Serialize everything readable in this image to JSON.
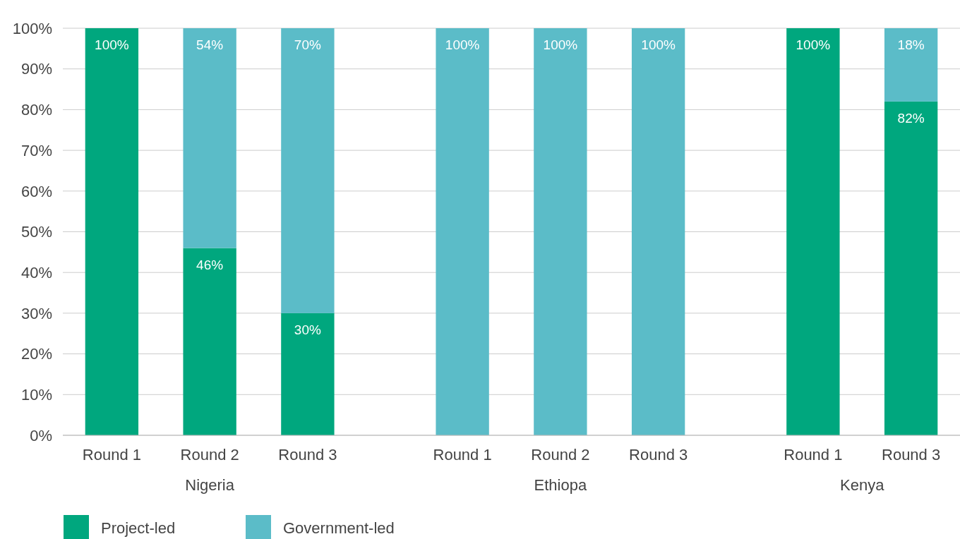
{
  "chart_data": {
    "type": "bar",
    "stacked": true,
    "categories": [
      "Round 1",
      "Round 2",
      "Round 3",
      null,
      "Round 1",
      "Round 2",
      "Round 3",
      null,
      "Round 1",
      "Round 3"
    ],
    "series": [
      {
        "name": "Project-led",
        "color": "#00a77e",
        "values": [
          100,
          46,
          30,
          null,
          0,
          0,
          0,
          null,
          100,
          82
        ],
        "value_labels": [
          "100%",
          "46%",
          "30%",
          null,
          null,
          null,
          null,
          null,
          "100%",
          "82%"
        ]
      },
      {
        "name": "Government-led",
        "color": "#5bbcc8",
        "values": [
          0,
          54,
          70,
          null,
          100,
          100,
          100,
          null,
          0,
          18
        ],
        "value_labels": [
          null,
          "54%",
          "70%",
          null,
          "100%",
          "100%",
          "100%",
          null,
          null,
          "18%"
        ]
      }
    ],
    "annotations": [
      "Nigeria",
      "Ethiopa",
      "Kenya"
    ],
    "ylim": [
      0,
      100
    ],
    "yticks": [
      {
        "value": 0,
        "label": "0%"
      },
      {
        "value": 10,
        "label": "10%"
      },
      {
        "value": 20,
        "label": "20%"
      },
      {
        "value": 30,
        "label": "30%"
      },
      {
        "value": 40,
        "label": "40%"
      },
      {
        "value": 50,
        "label": "50%"
      },
      {
        "value": 60,
        "label": "60%"
      },
      {
        "value": 70,
        "label": "70%"
      },
      {
        "value": 80,
        "label": "80%"
      },
      {
        "value": 90,
        "label": "90%"
      },
      {
        "value": 100,
        "label": "100%"
      }
    ],
    "grid": "y",
    "legend": "bottom left"
  }
}
